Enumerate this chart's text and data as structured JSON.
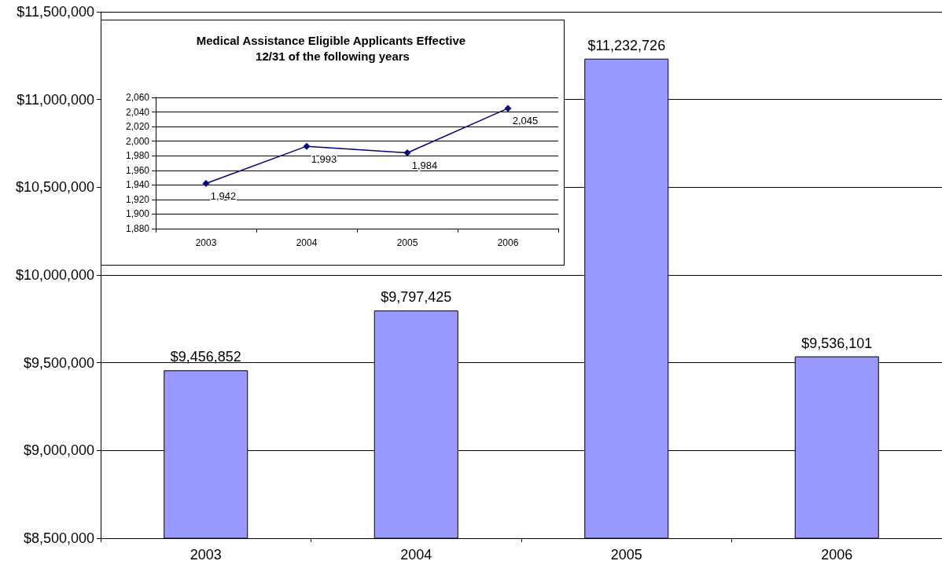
{
  "chart_data": [
    {
      "type": "bar",
      "categories": [
        "2003",
        "2004",
        "2005",
        "2006"
      ],
      "values": [
        9456852,
        9797425,
        11232726,
        9536101
      ],
      "color": "#9999ff",
      "value_labels": [
        "$9,456,852",
        "$9,797,425",
        "$11,232,726",
        "$9,536,101"
      ],
      "ylim": [
        8500000,
        11500000
      ],
      "yticks": [
        {
          "value": 8500000,
          "label": "$8,500,000"
        },
        {
          "value": 9000000,
          "label": "$9,000,000"
        },
        {
          "value": 9500000,
          "label": "$9,500,000"
        },
        {
          "value": 10000000,
          "label": "$10,000,000"
        },
        {
          "value": 10500000,
          "label": "$10,500,000"
        },
        {
          "value": 11000000,
          "label": "$11,000,000"
        },
        {
          "value": 11500000,
          "label": "$11,500,000"
        }
      ],
      "grid": "y"
    },
    {
      "type": "line",
      "title": "Medical Assistance Eligible Applicants Effective 12/31 of the following years",
      "categories": [
        "2003",
        "2004",
        "2005",
        "2006"
      ],
      "values": [
        1942,
        1993,
        1984,
        2045
      ],
      "color": "#000080",
      "value_labels": [
        "1,942",
        "1,993",
        "1,984",
        "2,045"
      ],
      "ylim": [
        1880,
        2060
      ],
      "yticks": [
        {
          "value": 1880,
          "label": "1,880"
        },
        {
          "value": 1900,
          "label": "1,900"
        },
        {
          "value": 1920,
          "label": "1,920"
        },
        {
          "value": 1940,
          "label": "1,940"
        },
        {
          "value": 1960,
          "label": "1,960"
        },
        {
          "value": 1980,
          "label": "1,980"
        },
        {
          "value": 2000,
          "label": "2,000"
        },
        {
          "value": 2020,
          "label": "2,020"
        },
        {
          "value": 2040,
          "label": "2,040"
        },
        {
          "value": 2060,
          "label": "2,060"
        }
      ],
      "grid": "y",
      "marker": "diamond",
      "line_style": "solid"
    }
  ]
}
